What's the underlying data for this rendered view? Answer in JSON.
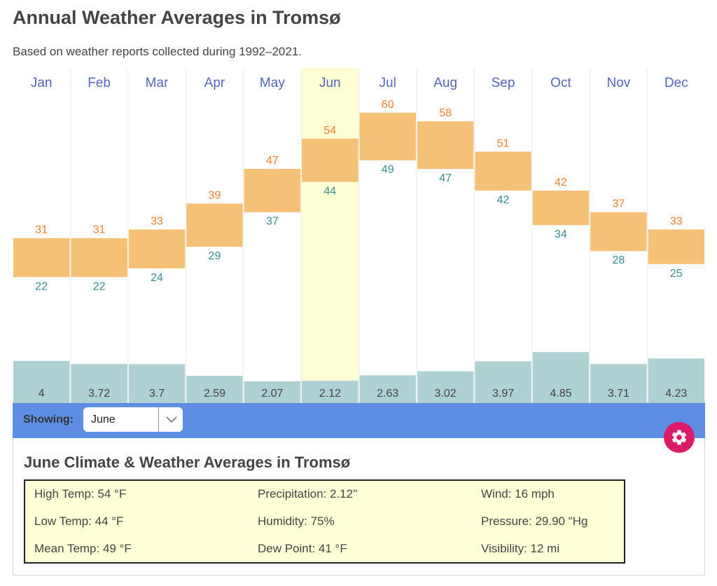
{
  "page": {
    "title": "Annual Weather Averages in Tromsø",
    "subtitle": "Based on weather reports collected during 1992–2021."
  },
  "colors": {
    "high_label": "#f08030",
    "low_label": "#3a8a90",
    "temp_bar": "#f5c176",
    "precip_bar": "#afd1d2",
    "month_label": "#5566bb",
    "selected_column": "#ffffd6",
    "control_bar": "#5d8ee4",
    "gear_button": "#dc1b68"
  },
  "chart_data": {
    "type": "bar",
    "title": "Annual Weather Averages in Tromsø",
    "categories": [
      "Jan",
      "Feb",
      "Mar",
      "Apr",
      "May",
      "Jun",
      "Jul",
      "Aug",
      "Sep",
      "Oct",
      "Nov",
      "Dec"
    ],
    "series": [
      {
        "name": "High Temp (°F)",
        "values": [
          31,
          31,
          33,
          39,
          47,
          54,
          60,
          58,
          51,
          42,
          37,
          33
        ]
      },
      {
        "name": "Low Temp (°F)",
        "values": [
          22,
          22,
          24,
          29,
          37,
          44,
          49,
          47,
          42,
          34,
          28,
          25
        ]
      },
      {
        "name": "Precipitation (in)",
        "values": [
          "4",
          "3.72",
          "3.7",
          "2.59",
          "2.07",
          "2.12",
          "2.63",
          "3.02",
          "3.97",
          "4.85",
          "3.71",
          "4.23"
        ]
      }
    ],
    "selected_category": "Jun",
    "xlabel": "",
    "ylabel": "",
    "grid": false,
    "legend": "none"
  },
  "controls": {
    "showing_label": "Showing:",
    "selected_month": "June",
    "settings_icon": "gear-icon"
  },
  "detail": {
    "title": "June Climate & Weather Averages in Tromsø",
    "stats": [
      [
        "High Temp: 54 °F",
        "Precipitation: 2.12\"",
        "Wind: 16 mph"
      ],
      [
        "Low Temp: 44 °F",
        "Humidity: 75%",
        "Pressure: 29.90 \"Hg"
      ],
      [
        "Mean Temp: 49 °F",
        "Dew Point: 41 °F",
        "Visibility: 12 mi"
      ]
    ]
  }
}
